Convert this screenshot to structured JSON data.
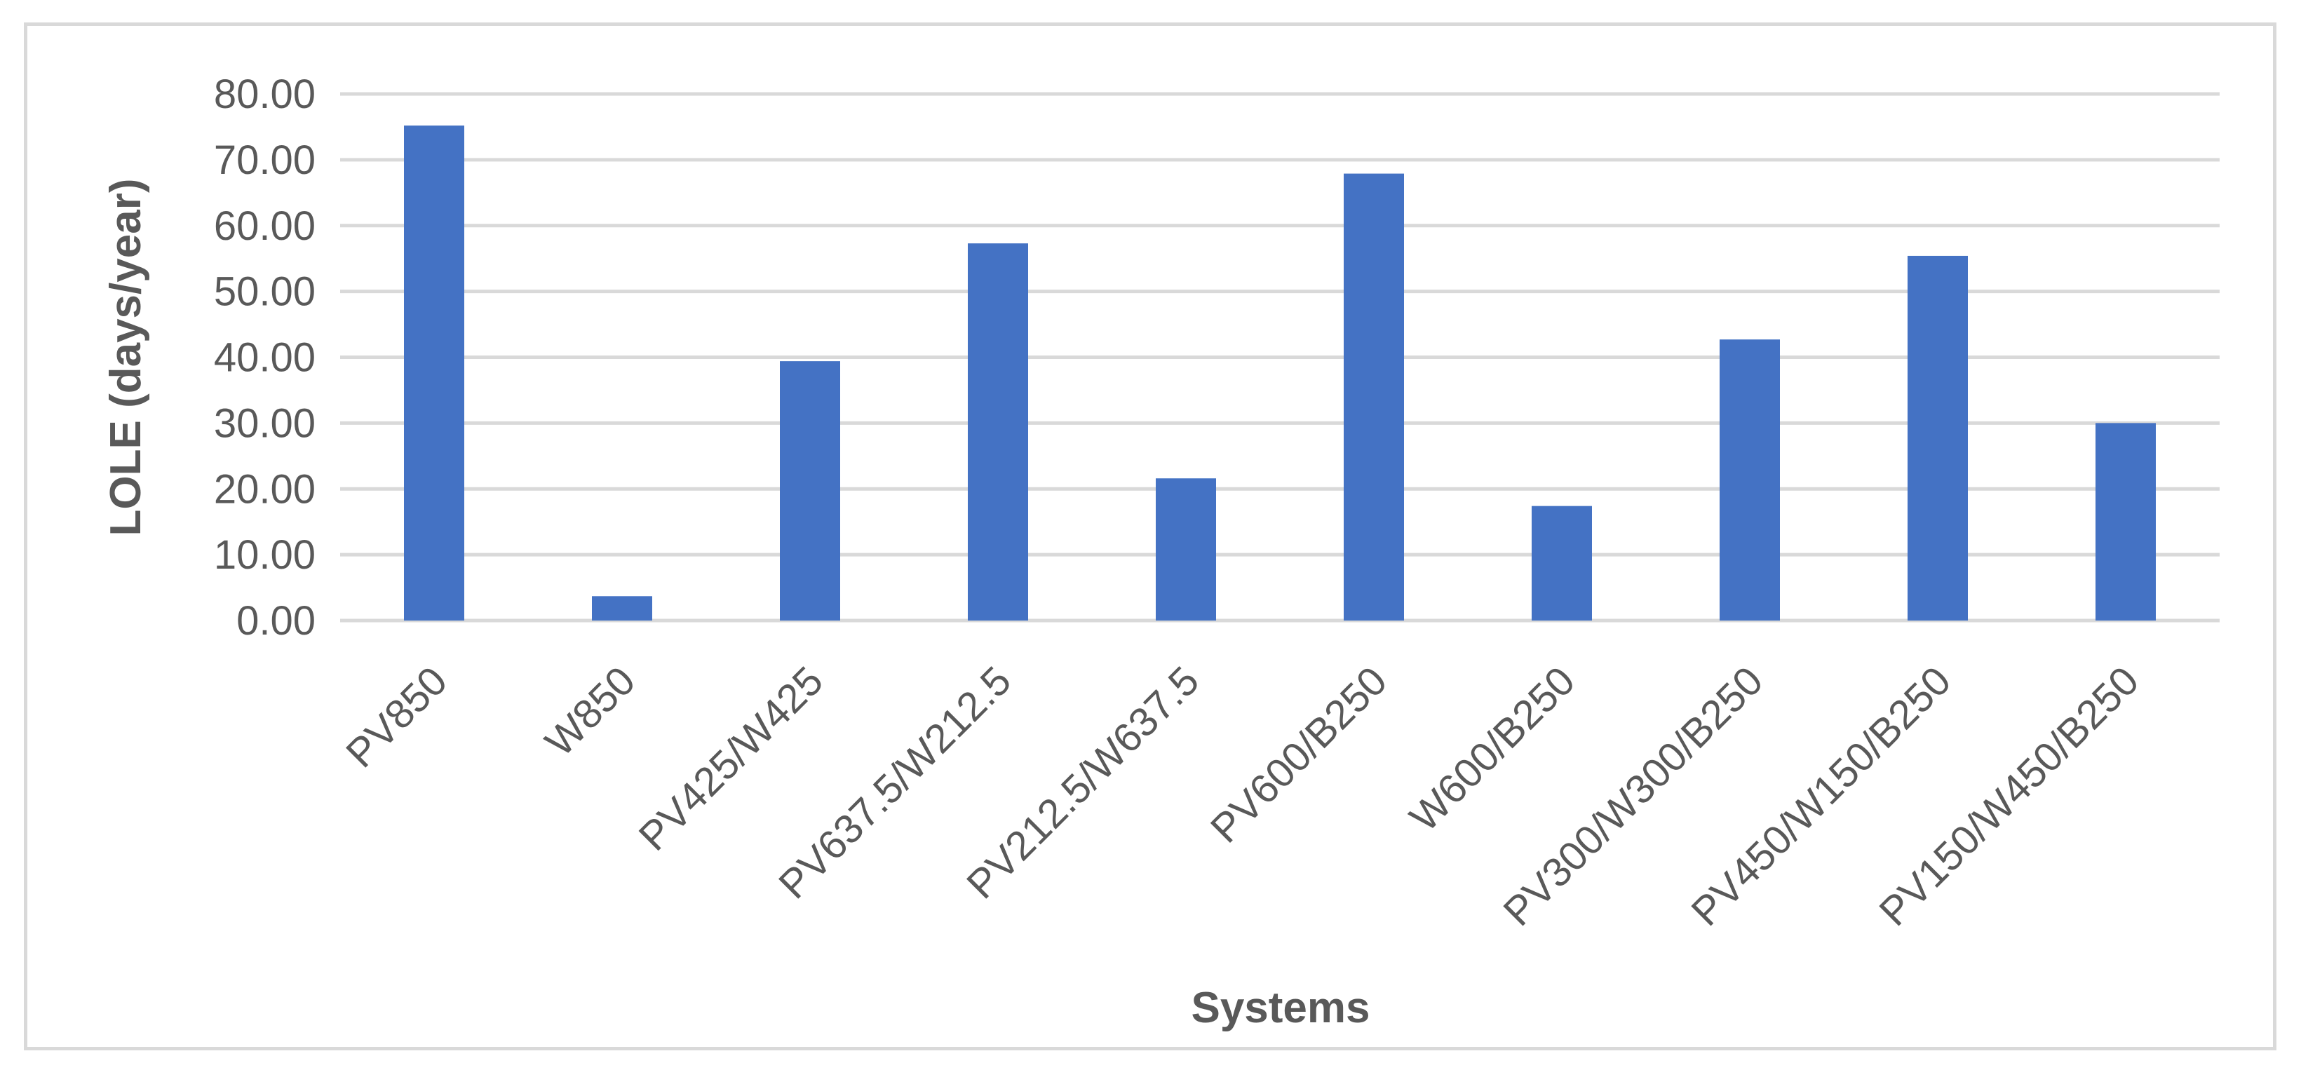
{
  "chart_data": {
    "type": "bar",
    "title": "",
    "xlabel": "Systems",
    "ylabel": "LOLE (days/year)",
    "categories": [
      "PV850",
      "W850",
      "PV425/W425",
      "PV637.5/W212.5",
      "PV212.5/W637.5",
      "PV600/B250",
      "W600/B250",
      "PV300/W300/B250",
      "PV450/W150/B250",
      "PV150/W450/B250"
    ],
    "values": [
      75.2,
      3.7,
      39.4,
      57.3,
      21.6,
      67.9,
      17.4,
      42.7,
      55.4,
      30.0
    ],
    "ylim": [
      0,
      80
    ],
    "yticks": [
      "0.00",
      "10.00",
      "20.00",
      "30.00",
      "40.00",
      "50.00",
      "60.00",
      "70.00",
      "80.00"
    ],
    "grid": true,
    "legend": "none",
    "colors": {
      "bar": "#4472c4",
      "grid": "#d9d9d9",
      "text": "#595959",
      "frame": "#d9d9d9"
    }
  }
}
